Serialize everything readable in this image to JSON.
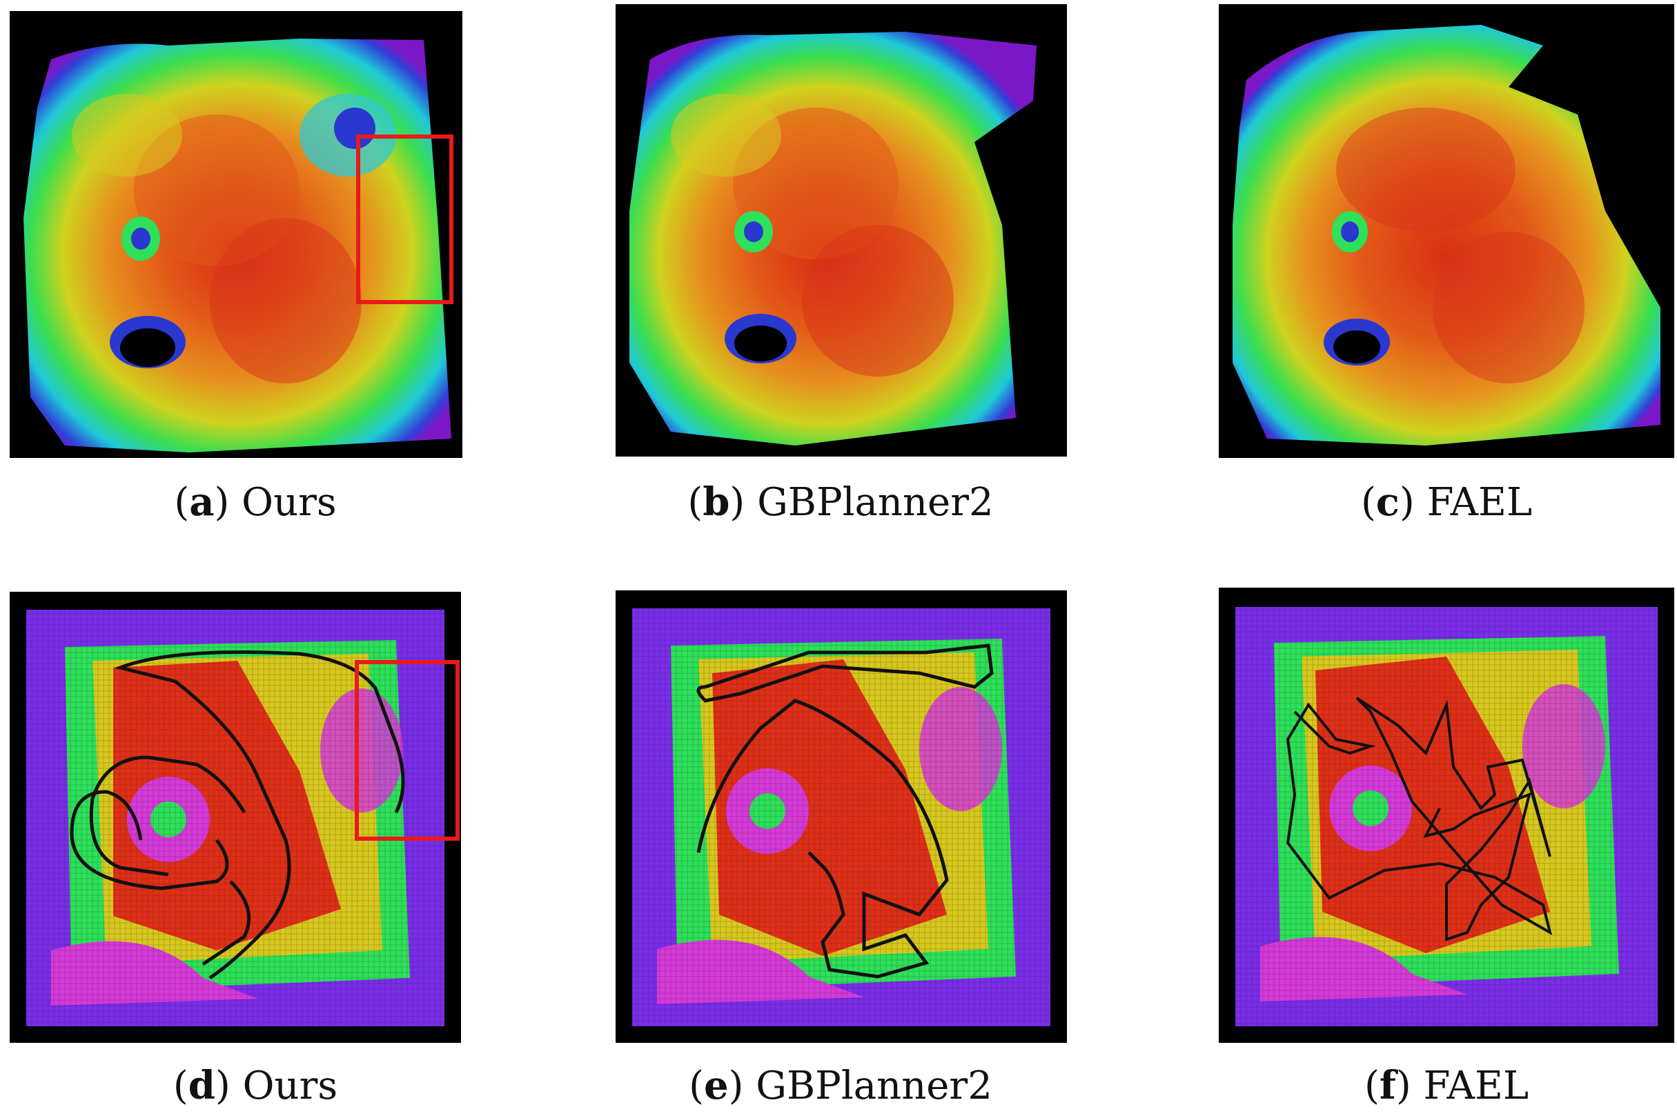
{
  "figure": {
    "panels": [
      {
        "id": "a",
        "letter": "a",
        "method": "Ours",
        "view": "elevation-map",
        "highlight_box": true
      },
      {
        "id": "b",
        "letter": "b",
        "method": "GBPlanner2",
        "view": "elevation-map",
        "highlight_box": false
      },
      {
        "id": "c",
        "letter": "c",
        "method": "FAEL",
        "view": "elevation-map",
        "highlight_box": false
      },
      {
        "id": "d",
        "letter": "d",
        "method": "Ours",
        "view": "traversability-map-with-trajectory",
        "highlight_box": true
      },
      {
        "id": "e",
        "letter": "e",
        "method": "GBPlanner2",
        "view": "traversability-map-with-trajectory",
        "highlight_box": false
      },
      {
        "id": "f",
        "letter": "f",
        "method": "FAEL",
        "view": "traversability-map-with-trajectory",
        "highlight_box": false
      }
    ],
    "colors": {
      "background": "#000000",
      "highlight": "#e81a1a",
      "trajectory": "#111111",
      "elevation_scale": [
        "#6a16c8",
        "#2848e0",
        "#19c8e0",
        "#2ee05a",
        "#d8d81e",
        "#f08a1e",
        "#e03018"
      ],
      "traversability_scale": [
        "#7a2ee8",
        "#d63ad8",
        "#2ee05a",
        "#d8c81e",
        "#e03018"
      ]
    }
  }
}
